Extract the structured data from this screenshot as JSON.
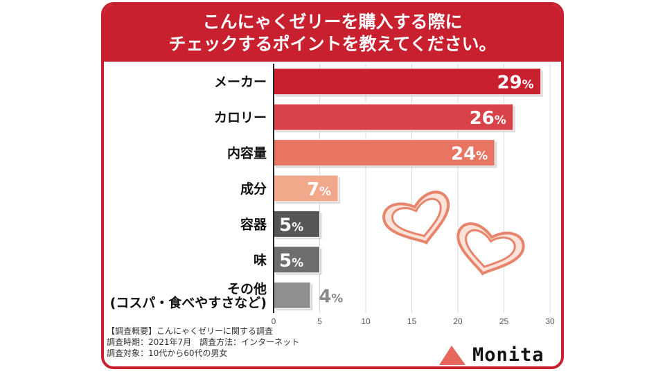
{
  "title_lines": [
    "こんにゃくゼリーを購入する際に",
    "チェックするポイントを教えてください。"
  ],
  "chart_data": {
    "type": "bar",
    "orientation": "horizontal",
    "title": "こんにゃくゼリーを購入する際にチェックするポイントを教えてください。",
    "categories": [
      "メーカー",
      "カロリー",
      "内容量",
      "成分",
      "容器",
      "味",
      "その他\n(コスパ・食べやすさなど)"
    ],
    "values": [
      29,
      26,
      24,
      7,
      5,
      5,
      4
    ],
    "value_labels": [
      "29",
      "26",
      "24",
      "7",
      "5",
      "5",
      "4"
    ],
    "unit": "%",
    "xlim": [
      0,
      30
    ],
    "x_ticks": [
      0,
      5,
      10,
      15,
      20,
      25,
      30
    ],
    "grid": true,
    "bar_colors": [
      "#c8202e",
      "#d8434a",
      "#e77562",
      "#f2a88a",
      "#565656",
      "#6e6e6e",
      "#8f8f8f"
    ]
  },
  "notes": [
    "【調査概要】こんにゃくゼリーに関する調査",
    "調査時期：2021年7月　調査方法：インターネット",
    "調査対象：10代から60代の男女"
  ],
  "brand": {
    "name": "Monita",
    "icon": "triangle-logo-icon",
    "icon_color": "#e8675c"
  }
}
